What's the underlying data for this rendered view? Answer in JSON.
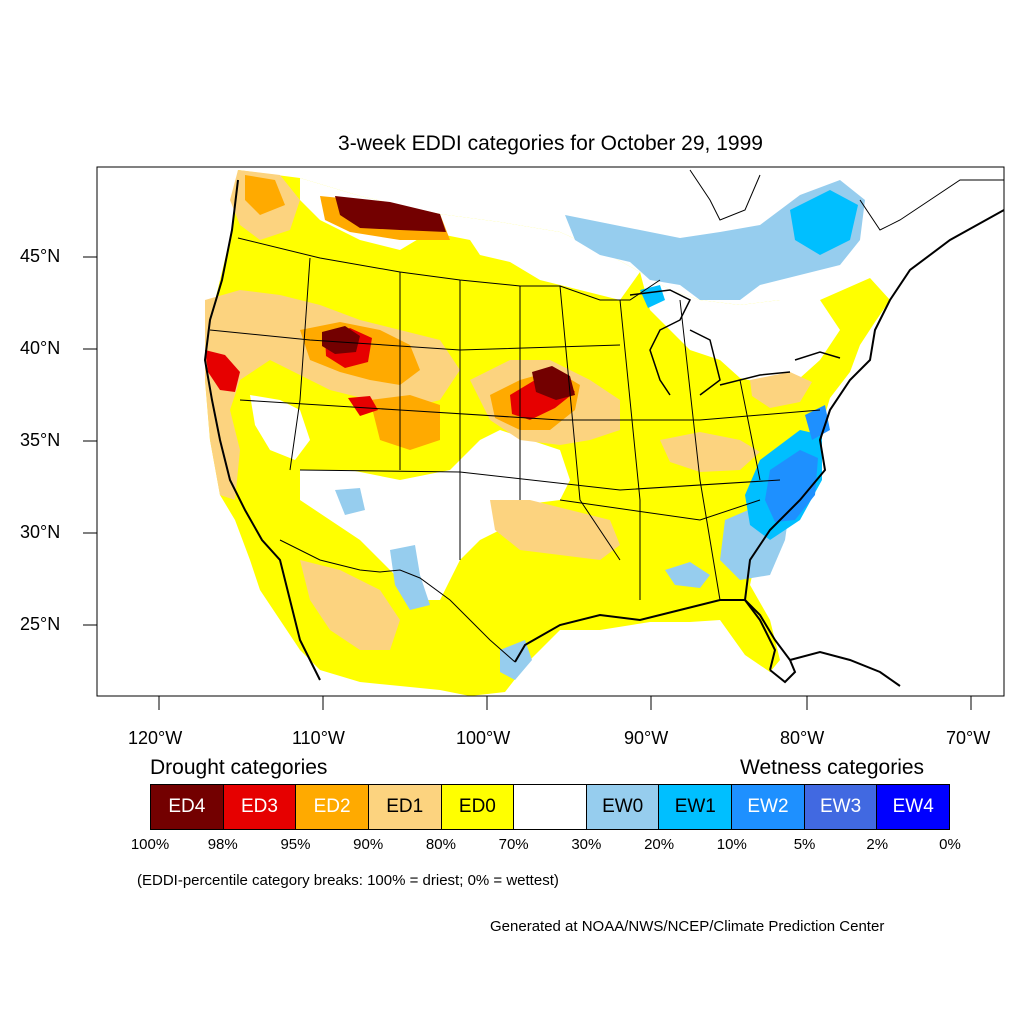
{
  "title": "3-week EDDI categories for October 29, 1999",
  "lat_labels": [
    "45°N",
    "40°N",
    "35°N",
    "30°N",
    "25°N"
  ],
  "lon_labels": [
    "120°W",
    "110°W",
    "100°W",
    "90°W",
    "80°W",
    "70°W"
  ],
  "drought_heading": "Drought categories",
  "wetness_heading": "Wetness categories",
  "legend": [
    {
      "label": "ED4",
      "color": "#730000",
      "text_color": "#ffffff"
    },
    {
      "label": "ED3",
      "color": "#e60000",
      "text_color": "#ffffff"
    },
    {
      "label": "ED2",
      "color": "#ffaa00",
      "text_color": "#ffffff"
    },
    {
      "label": "ED1",
      "color": "#fcd37f",
      "text_color": "#000000"
    },
    {
      "label": "ED0",
      "color": "#ffff00",
      "text_color": "#000000"
    },
    {
      "label": "",
      "color": "#ffffff",
      "text_color": "#000000"
    },
    {
      "label": "EW0",
      "color": "#96cdee",
      "text_color": "#000000"
    },
    {
      "label": "EW1",
      "color": "#00bfff",
      "text_color": "#000000"
    },
    {
      "label": "EW2",
      "color": "#1e90ff",
      "text_color": "#ffffff"
    },
    {
      "label": "EW3",
      "color": "#4169e1",
      "text_color": "#ffffff"
    },
    {
      "label": "EW4",
      "color": "#0000ff",
      "text_color": "#ffffff"
    }
  ],
  "breaks": [
    "100%",
    "98%",
    "95%",
    "90%",
    "80%",
    "70%",
    "30%",
    "20%",
    "10%",
    "5%",
    "2%",
    "0%"
  ],
  "note": "(EDDI-percentile category breaks: 100% = driest; 0% = wettest)",
  "credit": "Generated at NOAA/NWS/NCEP/Climate Prediction Center"
}
